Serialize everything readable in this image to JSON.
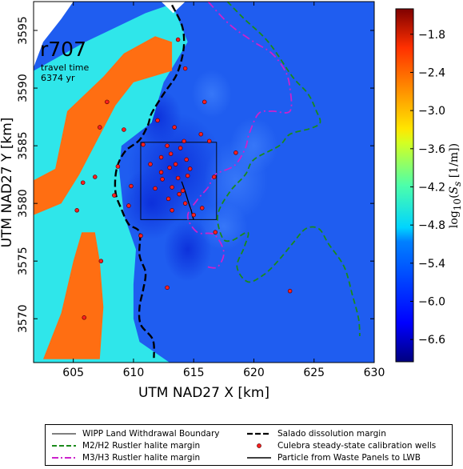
{
  "panel": {
    "title": "r707",
    "caption_line1": "travel time",
    "caption_line2": "6374 yr"
  },
  "chart_data": {
    "type": "heatmap",
    "xlabel": "UTM NAD27 X [km]",
    "ylabel": "UTM NAD27 Y [km]",
    "xlim": [
      601.7,
      630
    ],
    "ylim": [
      3566.2,
      3597.5
    ],
    "xticks": [
      605,
      610,
      615,
      620,
      625,
      630
    ],
    "yticks": [
      3570,
      3575,
      3580,
      3585,
      3590,
      3595
    ],
    "colorbar": {
      "label": "log10(Ss [1/m])",
      "range": [
        -6.95,
        -1.4
      ],
      "ticks": [
        -6.6,
        -6.0,
        -5.4,
        -4.8,
        -4.2,
        -3.6,
        -3.0,
        -2.4,
        -1.8
      ],
      "tick_labels": [
        "−6.6",
        "−6.0",
        "−5.4",
        "−4.8",
        "−4.2",
        "−3.6",
        "−3.0",
        "−2.4",
        "−1.8"
      ]
    },
    "regions": {
      "background_value": -6.2,
      "cyan_zone_value": -5.3,
      "orange_zone_value": -2.3,
      "cyan_zone_polygon": [
        [
          601.7,
          3591.5
        ],
        [
          606,
          3594
        ],
        [
          611,
          3596.5
        ],
        [
          613.2,
          3597.3
        ],
        [
          614.5,
          3594
        ],
        [
          612.5,
          3590.5
        ],
        [
          611.5,
          3587
        ],
        [
          609,
          3585
        ],
        [
          608.8,
          3583
        ],
        [
          609.2,
          3579
        ],
        [
          610.2,
          3576
        ],
        [
          610,
          3573
        ],
        [
          610,
          3570
        ],
        [
          610.5,
          3568
        ],
        [
          613,
          3566.2
        ],
        [
          601.7,
          3566.2
        ]
      ],
      "orange_upper_polygon": [
        [
          601.7,
          3582
        ],
        [
          603.5,
          3583
        ],
        [
          604.5,
          3588
        ],
        [
          607.5,
          3591
        ],
        [
          609.2,
          3593
        ],
        [
          611.8,
          3594.5
        ],
        [
          613.2,
          3594
        ],
        [
          613.2,
          3591.5
        ],
        [
          610,
          3590.5
        ],
        [
          608.5,
          3588.5
        ],
        [
          607,
          3585.5
        ],
        [
          605.5,
          3582.5
        ],
        [
          604,
          3580
        ],
        [
          601.7,
          3579
        ]
      ],
      "orange_lower_polygon": [
        [
          602.5,
          3566.5
        ],
        [
          604,
          3570.5
        ],
        [
          605,
          3575
        ],
        [
          605.7,
          3577.5
        ],
        [
          606.8,
          3577.5
        ],
        [
          607.2,
          3575
        ],
        [
          607.5,
          3571
        ],
        [
          607.2,
          3566.5
        ]
      ],
      "no_data_polygon": [
        [
          601.7,
          3591.8
        ],
        [
          602.5,
          3594
        ],
        [
          604,
          3596
        ],
        [
          605,
          3597.5
        ],
        [
          601.7,
          3597.5
        ]
      ],
      "no_data_polygon2": [
        [
          612.3,
          3597.5
        ],
        [
          614.3,
          3597.5
        ],
        [
          613.3,
          3596.5
        ]
      ]
    },
    "series": [
      {
        "name": "WIPP Land Withdrawal Boundary",
        "type": "box",
        "color": "#000000",
        "x": [
          610.6,
          616.9
        ],
        "y": [
          3578.6,
          3585.3
        ]
      },
      {
        "name": "M2/H2 Rustler halite margin",
        "type": "line",
        "color": "#1a8a1a",
        "x": [
          617.8,
          619.2,
          621.2,
          623.2,
          624.5,
          625.2,
          625.5,
          624.7,
          623.0,
          622.1,
          620.0,
          619.3,
          618.0,
          617.0,
          617.4,
          618.2,
          619.5,
          619.2,
          618.6,
          619.5,
          620.8,
          622.0,
          623.2,
          624.3,
          625.4,
          626.2,
          627.5,
          628.2,
          628.7,
          628.8
        ],
        "y": [
          3597.5,
          3596.0,
          3594.0,
          3591.0,
          3589.5,
          3588.0,
          3587.0,
          3586.5,
          3586.0,
          3585.0,
          3583.8,
          3582.5,
          3581.0,
          3579.0,
          3577.0,
          3576.8,
          3577.5,
          3576.2,
          3574.5,
          3573.2,
          3573.8,
          3575.0,
          3576.5,
          3577.8,
          3577.8,
          3576.5,
          3574.5,
          3572.0,
          3570.0,
          3568.5
        ]
      },
      {
        "name": "M3/H3 Rustler halite margin",
        "type": "line",
        "color": "#cc22cc",
        "x": [
          616.2,
          618.0,
          620.0,
          621.5,
          622.6,
          623.0,
          623.0,
          621.5,
          620.4,
          619.6,
          619.3,
          618.4,
          616.8,
          616.2,
          615.3,
          614.5,
          615.3,
          616.7,
          617.5,
          617.0,
          616.1
        ],
        "y": [
          3597.5,
          3595.5,
          3594.0,
          3593.0,
          3591.5,
          3590.0,
          3588.0,
          3588.0,
          3587.8,
          3586.0,
          3584.8,
          3583.3,
          3582.5,
          3581.4,
          3580.3,
          3578.9,
          3577.5,
          3577.3,
          3575.8,
          3574.5,
          3574.5
        ]
      },
      {
        "name": "Salado dissolution margin",
        "type": "line",
        "color": "#000000",
        "x": [
          613.2,
          614.0,
          614.2,
          614.0,
          613.5,
          612.5,
          611.5,
          611.2,
          610.5,
          609.3,
          608.6,
          608.5,
          609.0,
          609.6,
          610.5,
          610.5,
          611.0,
          610.8,
          610.5,
          610.6,
          611.6,
          611.7
        ],
        "y": [
          3597.2,
          3595.5,
          3594.0,
          3592.5,
          3591.0,
          3589.5,
          3587.8,
          3586.8,
          3585.5,
          3584.5,
          3583.0,
          3581.0,
          3579.5,
          3578.2,
          3577.5,
          3575.5,
          3574.0,
          3572.5,
          3571.0,
          3569.5,
          3568.2,
          3566.6
        ]
      },
      {
        "name": "Culebra steady-state calibration wells",
        "type": "scatter",
        "color": "#ff2020",
        "x": [
          605.3,
          605.9,
          605.8,
          606.8,
          607.2,
          607.8,
          607.3,
          608.4,
          608.7,
          609.2,
          609.8,
          610.6,
          610.8,
          611.4,
          611.8,
          612.0,
          612.3,
          612.3,
          612.4,
          612.8,
          612.9,
          613.0,
          613.1,
          613.2,
          613.2,
          613.4,
          613.5,
          613.7,
          613.8,
          613.9,
          614.1,
          614.2,
          614.3,
          614.4,
          614.5,
          614.7,
          615.0,
          615.6,
          615.9,
          616.3,
          616.7,
          612.8,
          613.7,
          614.3,
          618.5,
          623.0,
          609.6,
          616.8,
          615.7
        ],
        "y": [
          3579.4,
          3570.1,
          3581.8,
          3582.3,
          3586.6,
          3588.8,
          3575.0,
          3580.7,
          3583.2,
          3586.4,
          3581.5,
          3577.2,
          3585.1,
          3583.4,
          3581.3,
          3587.2,
          3584.0,
          3582.7,
          3582.1,
          3585.0,
          3580.4,
          3583.1,
          3584.3,
          3581.4,
          3579.4,
          3586.6,
          3583.4,
          3582.2,
          3580.8,
          3584.8,
          3581.1,
          3585.4,
          3580.0,
          3583.8,
          3582.4,
          3583.0,
          3579.0,
          3586.0,
          3588.8,
          3585.4,
          3582.3,
          3572.7,
          3594.2,
          3591.7,
          3584.4,
          3572.4,
          3579.8,
          3577.5,
          3579.6
        ]
      },
      {
        "name": "Particle from Waste Panels to LWB",
        "type": "line",
        "color": "#000000",
        "x": [
          614.0,
          614.3,
          614.6,
          614.8,
          614.9,
          615.0
        ],
        "y": [
          3581.9,
          3581.0,
          3580.0,
          3579.4,
          3578.9,
          3578.6
        ]
      }
    ]
  },
  "legend": {
    "boundary": "WIPP Land Withdrawal Boundary",
    "m2h2": "M2/H2 Rustler halite margin",
    "m3h3": "M3/H3 Rustler halite margin",
    "salado": "Salado dissolution margin",
    "wells": "Culebra steady-state calibration wells",
    "particle": "Particle from Waste Panels to LWB"
  },
  "colors": {
    "map_background": "#1f5df0",
    "cyan_zone": "#2fe6ea",
    "orange_zone": "#ff6e12",
    "well_fill": "#ff2020",
    "well_edge": "#5a0000"
  }
}
